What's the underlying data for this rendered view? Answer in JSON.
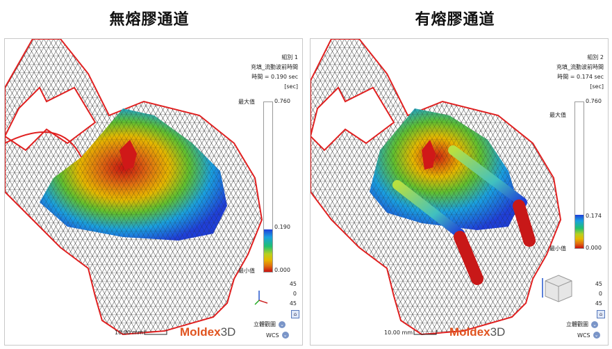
{
  "headings": {
    "left": "無熔膠通道",
    "right": "有熔膠通道"
  },
  "left": {
    "case": "組別 1",
    "quantity": "充填_流動波前時間",
    "time": "時間 = 0.190 sec",
    "unit": "[sec]",
    "max_label": "最大值",
    "max_value": "0.760",
    "current_value": "0.190",
    "min_label": "最小值",
    "min_value": "0.000",
    "fill_fraction": 0.25,
    "rot": [
      "45",
      "0",
      "45"
    ],
    "scale": "10.00 mm",
    "view_menu": "立體觀圖",
    "coord_menu": "WCS"
  },
  "right": {
    "case": "組別 2",
    "quantity": "充填_流動波前時間",
    "time": "時間 = 0.174 sec",
    "unit": "[sec]",
    "max_label": "最大值",
    "max_value": "0.760",
    "current_value": "0.174",
    "min_label": "最小值",
    "min_value": "0.000",
    "fill_fraction": 0.229,
    "rot": [
      "45",
      "0",
      "45"
    ],
    "scale": "10.00 mm",
    "view_menu": "立體觀圖",
    "coord_menu": "WCS"
  },
  "logo": {
    "main": "Moldex",
    "suffix": "3D"
  }
}
